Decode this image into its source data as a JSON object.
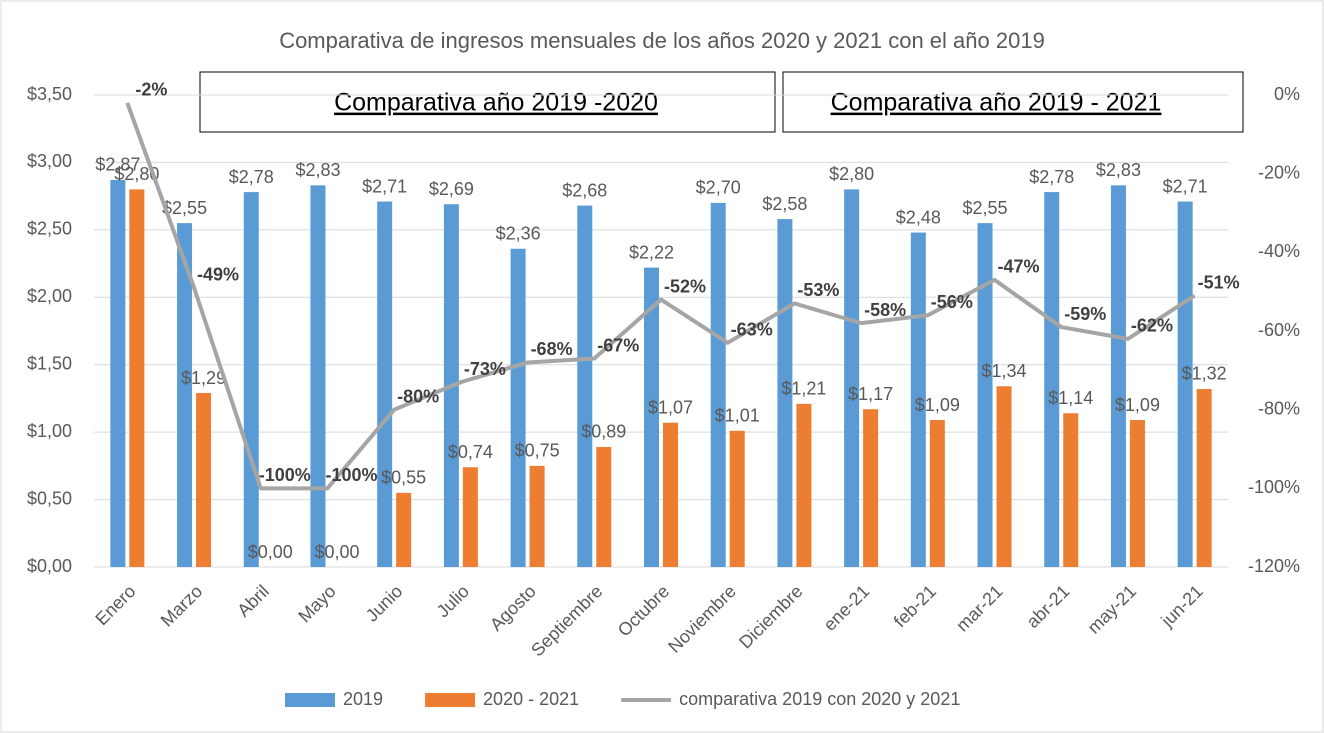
{
  "chart_data": {
    "type": "bar",
    "title": "Comparativa de ingresos mensuales de los años 2020 y 2021 con el año 2019",
    "annotations": [
      "Comparativa año 2019 -2020",
      "Comparativa año 2019 - 2021"
    ],
    "categories": [
      "Enero",
      "Marzo",
      "Abril",
      "Mayo",
      "Junio",
      "Julio",
      "Agosto",
      "Septiembre",
      "Octubre",
      "Noviembre",
      "Diciembre",
      "ene-21",
      "feb-21",
      "mar-21",
      "abr-21",
      "may-21",
      "jun-21"
    ],
    "series": [
      {
        "name": "2019",
        "type": "bar",
        "color": "#5b9bd5",
        "values": [
          2.87,
          2.55,
          2.78,
          2.83,
          2.71,
          2.69,
          2.36,
          2.68,
          2.22,
          2.7,
          2.58,
          2.8,
          2.48,
          2.55,
          2.78,
          2.83,
          2.71
        ],
        "value_labels": [
          "$2,87",
          "$2,55",
          "$2,78",
          "$2,83",
          "$2,71",
          "$2,69",
          "$2,36",
          "$2,68",
          "$2,22",
          "$2,70",
          "$2,58",
          "$2,80",
          "$2,48",
          "$2,55",
          "$2,78",
          "$2,83",
          "$2,71"
        ]
      },
      {
        "name": "2020 - 2021",
        "type": "bar",
        "color": "#ed7d31",
        "values": [
          2.8,
          1.29,
          0.0,
          0.0,
          0.55,
          0.74,
          0.75,
          0.89,
          1.07,
          1.01,
          1.21,
          1.17,
          1.09,
          1.34,
          1.14,
          1.09,
          1.32
        ],
        "value_labels": [
          "$2,80",
          "$1,29",
          "$0,00",
          "$0,00",
          "$0,55",
          "$0,74",
          "$0,75",
          "$0,89",
          "$1,07",
          "$1,01",
          "$1,21",
          "$1,17",
          "$1,09",
          "$1,34",
          "$1,14",
          "$1,09",
          "$1,32"
        ]
      },
      {
        "name": "comparativa 2019 con 2020 y 2021",
        "type": "line",
        "axis": "y2",
        "color": "#a5a5a5",
        "values": [
          -2,
          -49,
          -100,
          -100,
          -80,
          -73,
          -68,
          -67,
          -52,
          -63,
          -53,
          -58,
          -56,
          -47,
          -59,
          -62,
          -51
        ],
        "value_labels": [
          "-2%",
          "-49%",
          "-100%",
          "-100%",
          "-80%",
          "-73%",
          "-68%",
          "-67%",
          "-52%",
          "-63%",
          "-53%",
          "-58%",
          "-56%",
          "-47%",
          "-59%",
          "-62%",
          "-51%"
        ]
      }
    ],
    "ylim": [
      0,
      3.5
    ],
    "yticks": [
      {
        "value": 0,
        "label": "$0,00"
      },
      {
        "value": 0.5,
        "label": "$0,50"
      },
      {
        "value": 1,
        "label": "$1,00"
      },
      {
        "value": 1.5,
        "label": "$1,50"
      },
      {
        "value": 2,
        "label": "$2,00"
      },
      {
        "value": 2.5,
        "label": "$2,50"
      },
      {
        "value": 3,
        "label": "$3,00"
      },
      {
        "value": 3.5,
        "label": "$3,50"
      }
    ],
    "y2lim": [
      -120,
      0
    ],
    "y2ticks": [
      {
        "value": -120,
        "label": "-120%"
      },
      {
        "value": -100,
        "label": "-100%"
      },
      {
        "value": -80,
        "label": "-80%"
      },
      {
        "value": -60,
        "label": "-60%"
      },
      {
        "value": -40,
        "label": "-40%"
      },
      {
        "value": -20,
        "label": "-20%"
      },
      {
        "value": 0,
        "label": "0%"
      }
    ],
    "grid": true,
    "legend": "bottom"
  }
}
